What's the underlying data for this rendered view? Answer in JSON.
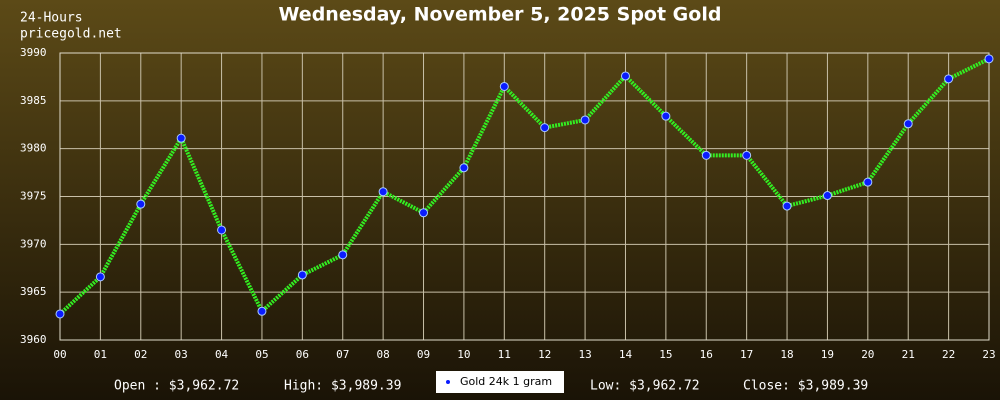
{
  "chart_data": {
    "type": "line",
    "title": "Wednesday, November 5, 2025 Spot Gold",
    "subtitle": "24-Hours",
    "source": "pricegold.net",
    "categories": [
      "00",
      "01",
      "02",
      "03",
      "04",
      "05",
      "06",
      "07",
      "08",
      "09",
      "10",
      "11",
      "12",
      "13",
      "14",
      "15",
      "16",
      "17",
      "18",
      "19",
      "20",
      "21",
      "22",
      "23"
    ],
    "series": [
      {
        "name": "Gold 24k 1 gram",
        "color": "#33ee22",
        "marker_color": "#0a1cff",
        "values": [
          3962.72,
          3966.6,
          3974.2,
          3981.1,
          3971.5,
          3963.0,
          3966.8,
          3968.9,
          3975.5,
          3973.3,
          3978.0,
          3986.5,
          3982.2,
          3983.0,
          3987.6,
          3983.4,
          3979.3,
          3979.3,
          3974.0,
          3975.1,
          3976.5,
          3982.6,
          3987.3,
          3989.39
        ]
      }
    ],
    "ylim": [
      3960,
      3990
    ],
    "yticks": [
      3960,
      3965,
      3970,
      3975,
      3980,
      3985,
      3990
    ],
    "grid": true,
    "annotations": [
      "Open : $3,962.72",
      "High: $3,989.39",
      "Low: $3,962.72",
      "Close: $3,989.39"
    ]
  }
}
